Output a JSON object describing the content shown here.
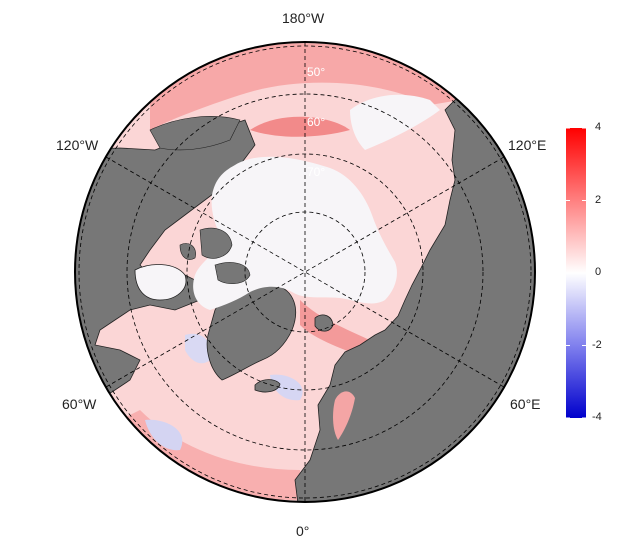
{
  "map": {
    "projection": "north-polar-stereographic",
    "longitude_labels": [
      {
        "key": "lon_180w",
        "text": "180°W"
      },
      {
        "key": "lon_120w",
        "text": "120°W"
      },
      {
        "key": "lon_120e",
        "text": "120°E"
      },
      {
        "key": "lon_60w",
        "text": "60°W"
      },
      {
        "key": "lon_60e",
        "text": "60°E"
      },
      {
        "key": "lon_0",
        "text": "0°"
      }
    ],
    "latitude_labels": [
      "50°",
      "60°",
      "70°"
    ],
    "graticule_latitudes": [
      50,
      60,
      70,
      80
    ],
    "graticule_longitudes": [
      0,
      60,
      120,
      180,
      240,
      300
    ],
    "colors": {
      "land": "#777777",
      "sea_ice": "#f7f5f8",
      "ocean_positive": "#ff0000",
      "ocean_negative": "#0000dd",
      "graticule": "#000000"
    }
  },
  "colorbar": {
    "min": -4,
    "max": 4,
    "ticks": [
      "4",
      "2",
      "0",
      "-2",
      "-4"
    ],
    "colors": [
      "#0000cc",
      "#ffffff",
      "#ff0000"
    ]
  }
}
